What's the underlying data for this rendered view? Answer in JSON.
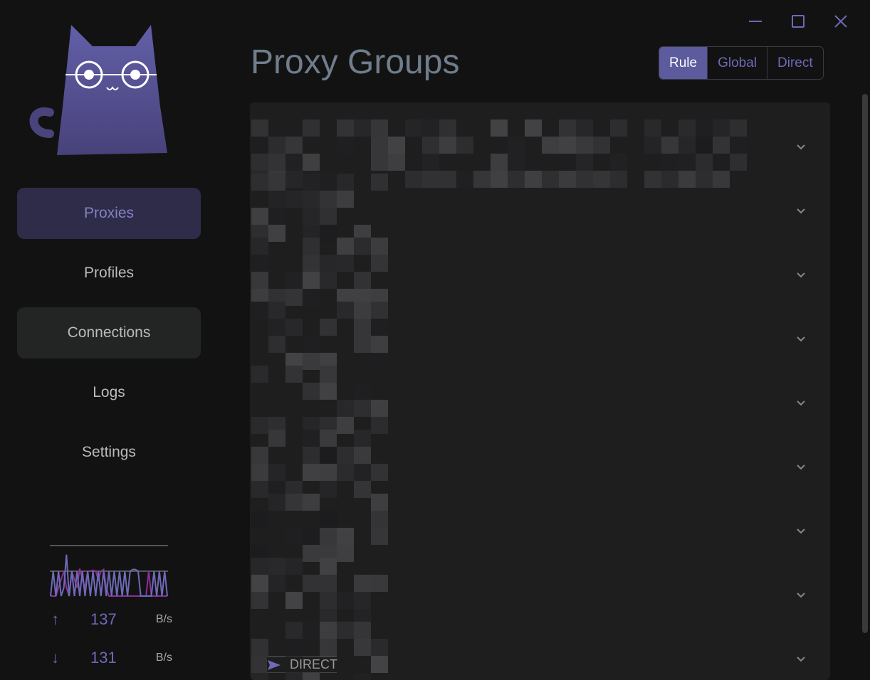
{
  "window": {
    "controls": [
      "minimize-icon",
      "maximize-icon",
      "close-icon"
    ]
  },
  "sidebar": {
    "items": [
      {
        "label": "Proxies",
        "active": true
      },
      {
        "label": "Profiles"
      },
      {
        "label": "Connections",
        "hovered": true
      },
      {
        "label": "Logs"
      },
      {
        "label": "Settings"
      }
    ]
  },
  "traffic": {
    "upload": {
      "value": "137",
      "unit": "B/s"
    },
    "download": {
      "value": "131",
      "unit": "B/s"
    },
    "upload_series": [
      0,
      3,
      0,
      3,
      0,
      1,
      5,
      0,
      3,
      0,
      3,
      0,
      3,
      0,
      3,
      0,
      3,
      0,
      3,
      0,
      3,
      0,
      3,
      0,
      3,
      0,
      3,
      0,
      3,
      0,
      3,
      3.2,
      3.2,
      3,
      0,
      0,
      0,
      0,
      0,
      3,
      0,
      3,
      0,
      3,
      0
    ],
    "download_series": [
      0,
      0,
      0,
      1,
      2,
      3,
      1,
      0,
      3,
      2,
      1,
      3.3,
      2,
      1,
      3,
      3,
      3.1,
      3,
      2,
      3,
      3.2,
      1,
      0,
      0,
      0,
      0,
      0,
      0,
      0,
      0,
      0,
      0,
      0,
      0,
      0,
      0,
      0,
      3,
      0,
      0,
      0,
      0,
      0,
      0,
      0
    ],
    "colors": {
      "upload": "#6e6ab8",
      "download": "#8a2f9a"
    }
  },
  "main": {
    "title": "Proxy Groups",
    "modes": [
      {
        "label": "Rule",
        "selected": true
      },
      {
        "label": "Global"
      },
      {
        "label": "Direct"
      }
    ],
    "groups_count_visible": 9,
    "last_group_current": "DIRECT"
  },
  "colors": {
    "accent": "#5b5b9e",
    "background": "#121212",
    "panel": "#1e1e1e"
  }
}
